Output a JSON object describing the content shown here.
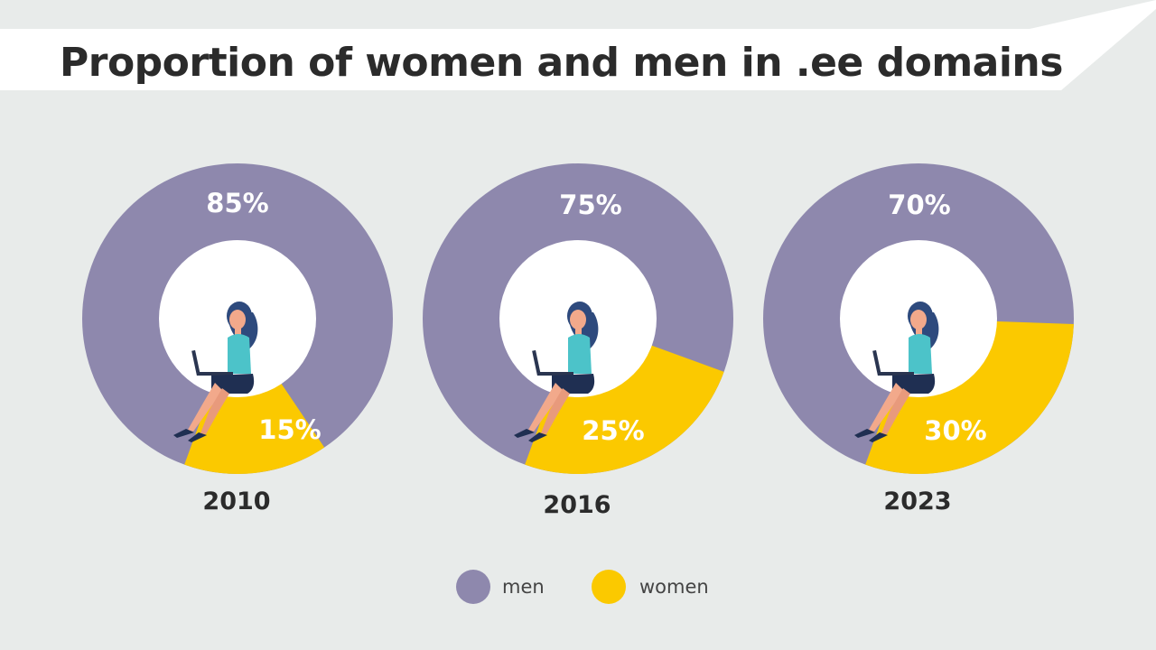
{
  "title": "Proportion of women and men in .ee domains",
  "colors": {
    "men": "#8e88ad",
    "women": "#fbc900",
    "hole": "#ffffff",
    "background": "#e8ebea"
  },
  "legend": [
    {
      "label": "men",
      "color": "#8e88ad"
    },
    {
      "label": "women",
      "color": "#fbc900"
    }
  ],
  "chart_data": [
    {
      "type": "pie",
      "title": "2010",
      "categories": [
        "men",
        "women"
      ],
      "values": [
        85,
        15
      ],
      "labels": [
        "85%",
        "15%"
      ]
    },
    {
      "type": "pie",
      "title": "2016",
      "categories": [
        "men",
        "women"
      ],
      "values": [
        75,
        25
      ],
      "labels": [
        "75%",
        "25%"
      ]
    },
    {
      "type": "pie",
      "title": "2023",
      "categories": [
        "men",
        "women"
      ],
      "values": [
        70,
        30
      ],
      "labels": [
        "70%",
        "30%"
      ]
    }
  ]
}
